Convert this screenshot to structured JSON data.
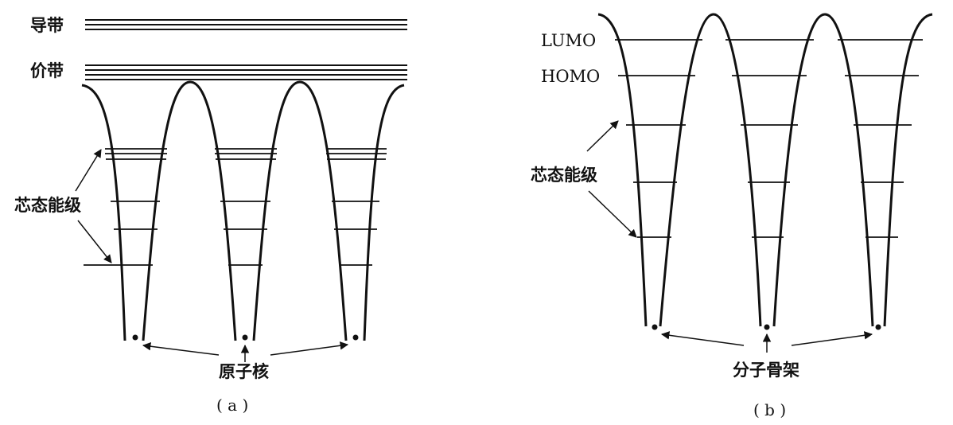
{
  "panel_a": {
    "conduction_band_label": "导带",
    "valence_band_label": "价带",
    "core_levels_label": "芯态能级",
    "nucleus_label": "原子核",
    "caption": "( a )"
  },
  "panel_b": {
    "lumo_label": "LUMO",
    "homo_label": "HOMO",
    "core_levels_label": "芯态能级",
    "skeleton_label": "分子骨架",
    "caption": "( b )"
  }
}
